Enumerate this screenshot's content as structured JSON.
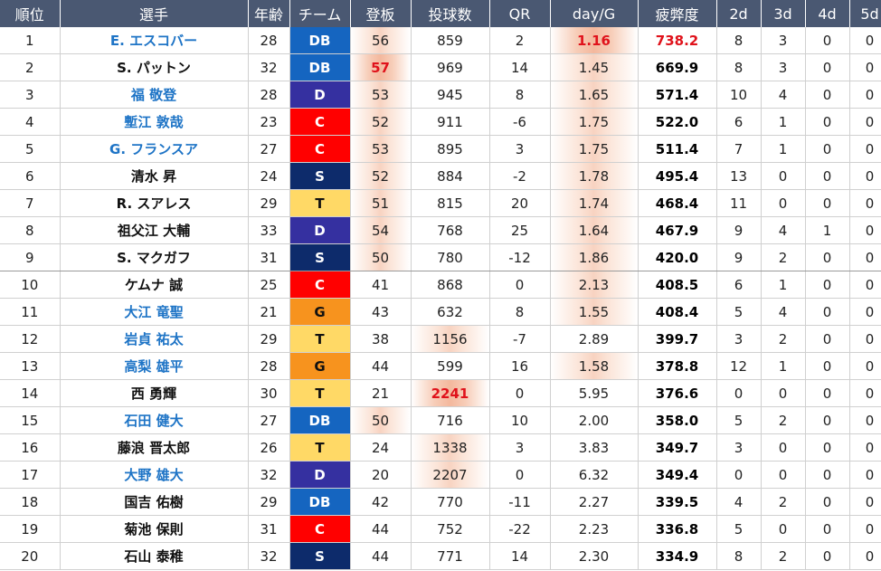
{
  "headers": [
    "順位",
    "選手",
    "年齢",
    "チーム",
    "登板",
    "投球数",
    "QR",
    "day/G",
    "疲弊度",
    "2d",
    "3d",
    "4d",
    "5d"
  ],
  "team_colors": {
    "DB": {
      "bg": "#1565c0",
      "fg": "#ffffff"
    },
    "D": {
      "bg": "#3530a0",
      "fg": "#ffffff"
    },
    "C": {
      "bg": "#ff0000",
      "fg": "#ffffff"
    },
    "S": {
      "bg": "#0d2b6b",
      "fg": "#ffffff"
    },
    "T": {
      "bg": "#ffd966",
      "fg": "#111111"
    },
    "G": {
      "bg": "#f7931e",
      "fg": "#111111"
    }
  },
  "rows": [
    {
      "rank": "1",
      "name": "E. エスコバー",
      "name_blue": true,
      "age": "28",
      "team": "DB",
      "games": "56",
      "pitches": "859",
      "qr": "2",
      "dayg": "1.16",
      "fatigue": "738.2",
      "d2": "8",
      "d3": "3",
      "d4": "0",
      "d5": "0",
      "games_heat": 1,
      "pitches_heat": 0,
      "dayg_heat": 2,
      "games_red": false,
      "pitches_red": false,
      "dayg_red": true,
      "fatigue_red": true
    },
    {
      "rank": "2",
      "name": "S. パットン",
      "name_blue": false,
      "age": "32",
      "team": "DB",
      "games": "57",
      "pitches": "969",
      "qr": "14",
      "dayg": "1.45",
      "fatigue": "669.9",
      "d2": "8",
      "d3": "3",
      "d4": "0",
      "d5": "0",
      "games_heat": 2,
      "pitches_heat": 0,
      "dayg_heat": 1,
      "games_red": true,
      "pitches_red": false,
      "dayg_red": false,
      "fatigue_red": false
    },
    {
      "rank": "3",
      "name": "福 敬登",
      "name_blue": true,
      "age": "28",
      "team": "D",
      "games": "53",
      "pitches": "945",
      "qr": "8",
      "dayg": "1.65",
      "fatigue": "571.4",
      "d2": "10",
      "d3": "4",
      "d4": "0",
      "d5": "0",
      "games_heat": 1,
      "pitches_heat": 0,
      "dayg_heat": 1,
      "games_red": false,
      "pitches_red": false,
      "dayg_red": false,
      "fatigue_red": false
    },
    {
      "rank": "4",
      "name": "塹江 敦哉",
      "name_blue": true,
      "age": "23",
      "team": "C",
      "games": "52",
      "pitches": "911",
      "qr": "-6",
      "dayg": "1.75",
      "fatigue": "522.0",
      "d2": "6",
      "d3": "1",
      "d4": "0",
      "d5": "0",
      "games_heat": 1,
      "pitches_heat": 0,
      "dayg_heat": 1,
      "games_red": false,
      "pitches_red": false,
      "dayg_red": false,
      "fatigue_red": false
    },
    {
      "rank": "5",
      "name": "G. フランスア",
      "name_blue": true,
      "age": "27",
      "team": "C",
      "games": "53",
      "pitches": "895",
      "qr": "3",
      "dayg": "1.75",
      "fatigue": "511.4",
      "d2": "7",
      "d3": "1",
      "d4": "0",
      "d5": "0",
      "games_heat": 1,
      "pitches_heat": 0,
      "dayg_heat": 1,
      "games_red": false,
      "pitches_red": false,
      "dayg_red": false,
      "fatigue_red": false
    },
    {
      "rank": "6",
      "name": "清水 昇",
      "name_blue": false,
      "age": "24",
      "team": "S",
      "games": "52",
      "pitches": "884",
      "qr": "-2",
      "dayg": "1.78",
      "fatigue": "495.4",
      "d2": "13",
      "d3": "0",
      "d4": "0",
      "d5": "0",
      "games_heat": 1,
      "pitches_heat": 0,
      "dayg_heat": 1,
      "games_red": false,
      "pitches_red": false,
      "dayg_red": false,
      "fatigue_red": false
    },
    {
      "rank": "7",
      "name": "R. スアレス",
      "name_blue": false,
      "age": "29",
      "team": "T",
      "games": "51",
      "pitches": "815",
      "qr": "20",
      "dayg": "1.74",
      "fatigue": "468.4",
      "d2": "11",
      "d3": "0",
      "d4": "0",
      "d5": "0",
      "games_heat": 1,
      "pitches_heat": 0,
      "dayg_heat": 1,
      "games_red": false,
      "pitches_red": false,
      "dayg_red": false,
      "fatigue_red": false
    },
    {
      "rank": "8",
      "name": "祖父江 大輔",
      "name_blue": false,
      "age": "33",
      "team": "D",
      "games": "54",
      "pitches": "768",
      "qr": "25",
      "dayg": "1.64",
      "fatigue": "467.9",
      "d2": "9",
      "d3": "4",
      "d4": "1",
      "d5": "0",
      "games_heat": 1,
      "pitches_heat": 0,
      "dayg_heat": 1,
      "games_red": false,
      "pitches_red": false,
      "dayg_red": false,
      "fatigue_red": false
    },
    {
      "rank": "9",
      "name": "S. マクガフ",
      "name_blue": false,
      "age": "31",
      "team": "S",
      "games": "50",
      "pitches": "780",
      "qr": "-12",
      "dayg": "1.86",
      "fatigue": "420.0",
      "d2": "9",
      "d3": "2",
      "d4": "0",
      "d5": "0",
      "games_heat": 1,
      "pitches_heat": 0,
      "dayg_heat": 1,
      "games_red": false,
      "pitches_red": false,
      "dayg_red": false,
      "fatigue_red": false
    },
    {
      "rank": "10",
      "name": "ケムナ 誠",
      "name_blue": false,
      "age": "25",
      "team": "C",
      "games": "41",
      "pitches": "868",
      "qr": "0",
      "dayg": "2.13",
      "fatigue": "408.5",
      "d2": "6",
      "d3": "1",
      "d4": "0",
      "d5": "0",
      "games_heat": 0,
      "pitches_heat": 0,
      "dayg_heat": 1,
      "games_red": false,
      "pitches_red": false,
      "dayg_red": false,
      "fatigue_red": false
    },
    {
      "rank": "11",
      "name": "大江 竜聖",
      "name_blue": true,
      "age": "21",
      "team": "G",
      "games": "43",
      "pitches": "632",
      "qr": "8",
      "dayg": "1.55",
      "fatigue": "408.4",
      "d2": "5",
      "d3": "4",
      "d4": "0",
      "d5": "0",
      "games_heat": 0,
      "pitches_heat": 0,
      "dayg_heat": 1,
      "games_red": false,
      "pitches_red": false,
      "dayg_red": false,
      "fatigue_red": false
    },
    {
      "rank": "12",
      "name": "岩貞 祐太",
      "name_blue": true,
      "age": "29",
      "team": "T",
      "games": "38",
      "pitches": "1156",
      "qr": "-7",
      "dayg": "2.89",
      "fatigue": "399.7",
      "d2": "3",
      "d3": "2",
      "d4": "0",
      "d5": "0",
      "games_heat": 0,
      "pitches_heat": 1,
      "dayg_heat": 0,
      "games_red": false,
      "pitches_red": false,
      "dayg_red": false,
      "fatigue_red": false
    },
    {
      "rank": "13",
      "name": "高梨 雄平",
      "name_blue": true,
      "age": "28",
      "team": "G",
      "games": "44",
      "pitches": "599",
      "qr": "16",
      "dayg": "1.58",
      "fatigue": "378.8",
      "d2": "12",
      "d3": "1",
      "d4": "0",
      "d5": "0",
      "games_heat": 0,
      "pitches_heat": 0,
      "dayg_heat": 1,
      "games_red": false,
      "pitches_red": false,
      "dayg_red": false,
      "fatigue_red": false
    },
    {
      "rank": "14",
      "name": "西 勇輝",
      "name_blue": false,
      "age": "30",
      "team": "T",
      "games": "21",
      "pitches": "2241",
      "qr": "0",
      "dayg": "5.95",
      "fatigue": "376.6",
      "d2": "0",
      "d3": "0",
      "d4": "0",
      "d5": "0",
      "games_heat": 0,
      "pitches_heat": 2,
      "dayg_heat": 0,
      "games_red": false,
      "pitches_red": true,
      "dayg_red": false,
      "fatigue_red": false
    },
    {
      "rank": "15",
      "name": "石田 健大",
      "name_blue": true,
      "age": "27",
      "team": "DB",
      "games": "50",
      "pitches": "716",
      "qr": "10",
      "dayg": "2.00",
      "fatigue": "358.0",
      "d2": "5",
      "d3": "2",
      "d4": "0",
      "d5": "0",
      "games_heat": 1,
      "pitches_heat": 0,
      "dayg_heat": 0,
      "games_red": false,
      "pitches_red": false,
      "dayg_red": false,
      "fatigue_red": false
    },
    {
      "rank": "16",
      "name": "藤浪 晋太郎",
      "name_blue": false,
      "age": "26",
      "team": "T",
      "games": "24",
      "pitches": "1338",
      "qr": "3",
      "dayg": "3.83",
      "fatigue": "349.7",
      "d2": "3",
      "d3": "0",
      "d4": "0",
      "d5": "0",
      "games_heat": 0,
      "pitches_heat": 1,
      "dayg_heat": 0,
      "games_red": false,
      "pitches_red": false,
      "dayg_red": false,
      "fatigue_red": false
    },
    {
      "rank": "17",
      "name": "大野 雄大",
      "name_blue": true,
      "age": "32",
      "team": "D",
      "games": "20",
      "pitches": "2207",
      "qr": "0",
      "dayg": "6.32",
      "fatigue": "349.4",
      "d2": "0",
      "d3": "0",
      "d4": "0",
      "d5": "0",
      "games_heat": 0,
      "pitches_heat": 1,
      "dayg_heat": 0,
      "games_red": false,
      "pitches_red": false,
      "dayg_red": false,
      "fatigue_red": false
    },
    {
      "rank": "18",
      "name": "国吉 佑樹",
      "name_blue": false,
      "age": "29",
      "team": "DB",
      "games": "42",
      "pitches": "770",
      "qr": "-11",
      "dayg": "2.27",
      "fatigue": "339.5",
      "d2": "4",
      "d3": "2",
      "d4": "0",
      "d5": "0",
      "games_heat": 0,
      "pitches_heat": 0,
      "dayg_heat": 0,
      "games_red": false,
      "pitches_red": false,
      "dayg_red": false,
      "fatigue_red": false
    },
    {
      "rank": "19",
      "name": "菊池 保則",
      "name_blue": false,
      "age": "31",
      "team": "C",
      "games": "44",
      "pitches": "752",
      "qr": "-22",
      "dayg": "2.23",
      "fatigue": "336.8",
      "d2": "5",
      "d3": "0",
      "d4": "0",
      "d5": "0",
      "games_heat": 0,
      "pitches_heat": 0,
      "dayg_heat": 0,
      "games_red": false,
      "pitches_red": false,
      "dayg_red": false,
      "fatigue_red": false
    },
    {
      "rank": "20",
      "name": "石山 泰稚",
      "name_blue": false,
      "age": "32",
      "team": "S",
      "games": "44",
      "pitches": "771",
      "qr": "14",
      "dayg": "2.30",
      "fatigue": "334.9",
      "d2": "8",
      "d3": "2",
      "d4": "0",
      "d5": "0",
      "games_heat": 0,
      "pitches_heat": 0,
      "dayg_heat": 0,
      "games_red": false,
      "pitches_red": false,
      "dayg_red": false,
      "fatigue_red": false
    }
  ]
}
